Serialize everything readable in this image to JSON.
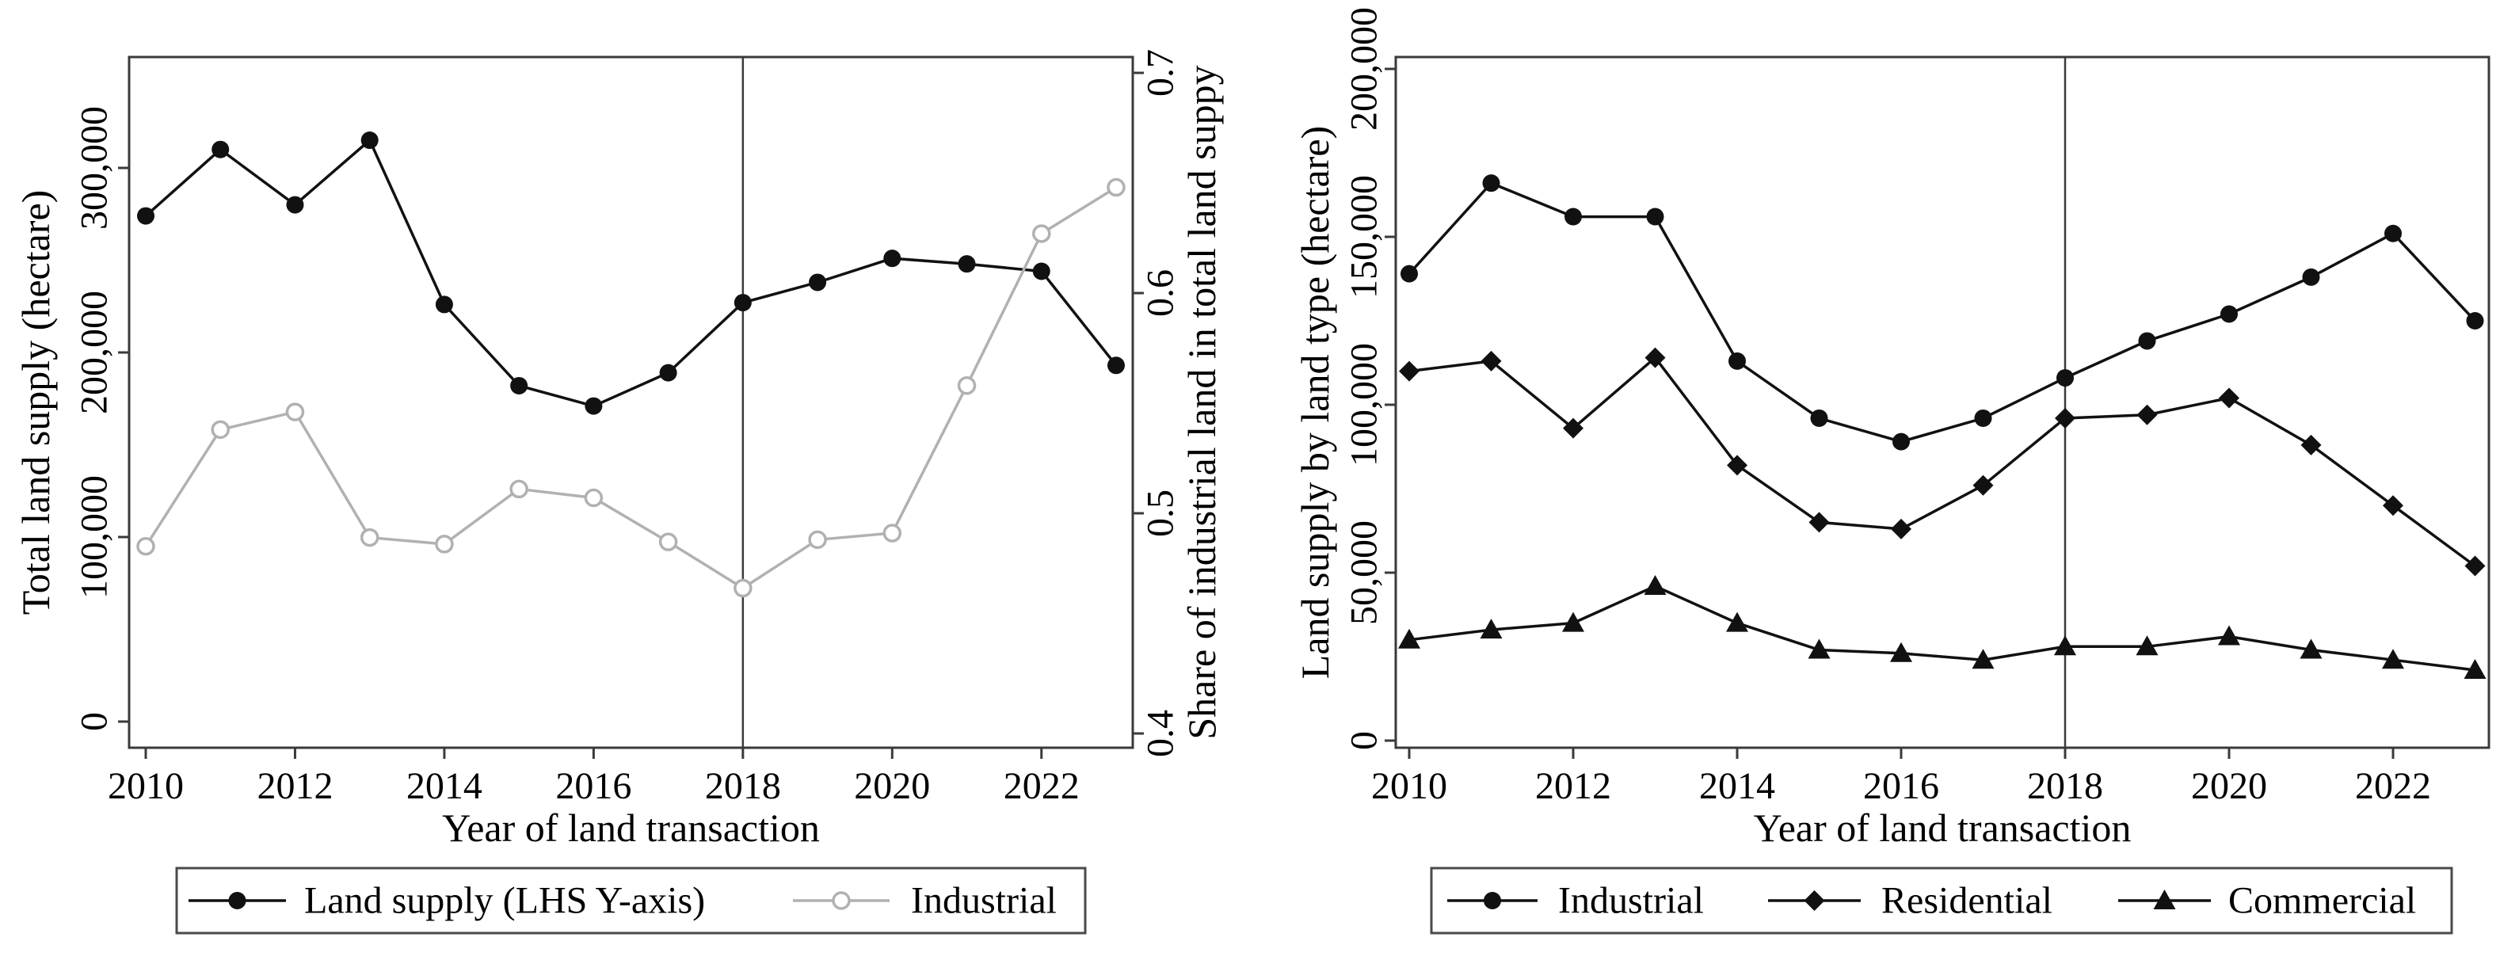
{
  "figure": {
    "background": "#ffffff",
    "frame_color": "#3a3a3a",
    "text_color": "#000000",
    "black_series_color": "#111111",
    "gray_series_color": "#b1b1b1"
  },
  "chart_data": [
    {
      "id": "left-panel",
      "type": "line",
      "xlabel": "Year of land transaction",
      "ylabel_left": "Total land supply (hectare)",
      "ylabel_right": "Share of industrial land in total land suppy",
      "x": [
        2010,
        2011,
        2012,
        2013,
        2014,
        2015,
        2016,
        2017,
        2018,
        2019,
        2020,
        2021,
        2022,
        2023
      ],
      "x_tick_values": [
        2010,
        2012,
        2014,
        2016,
        2018,
        2020,
        2022
      ],
      "x_tick_labels": [
        "2010",
        "2012",
        "2014",
        "2016",
        "2018",
        "2020",
        "2022"
      ],
      "y_left_tick_values": [
        0,
        100000,
        200000,
        300000
      ],
      "y_left_tick_labels": [
        "0",
        "100,000",
        "200,000",
        "300,000"
      ],
      "y_right_tick_values": [
        0.4,
        0.5,
        0.6,
        0.7
      ],
      "y_right_tick_labels": [
        "0.4",
        "0.5",
        "0.6",
        "0.7"
      ],
      "ylim_left": [
        0,
        360000
      ],
      "ylim_right": [
        0.393,
        0.707
      ],
      "grid": false,
      "legend_position": "bottom",
      "reference_line_x": 2018,
      "series": [
        {
          "name": "Land supply (LHS Y-axis)",
          "axis": "left",
          "marker": "circle-filled",
          "color": "#111111",
          "values": [
            274000,
            310000,
            280000,
            315000,
            226000,
            182000,
            171000,
            189000,
            227000,
            238000,
            251000,
            248000,
            244000,
            193000
          ]
        },
        {
          "name": "Industrial",
          "axis": "right",
          "marker": "circle-open",
          "color": "#b1b1b1",
          "values": [
            0.485,
            0.538,
            0.546,
            0.489,
            0.486,
            0.511,
            0.507,
            0.487,
            0.466,
            0.488,
            0.491,
            0.558,
            0.627,
            0.648
          ]
        }
      ]
    },
    {
      "id": "right-panel",
      "type": "line",
      "xlabel": "Year of land transaction",
      "ylabel_left": "Land supply by land type (hectare)",
      "ylabel_right": "",
      "x": [
        2010,
        2011,
        2012,
        2013,
        2014,
        2015,
        2016,
        2017,
        2018,
        2019,
        2020,
        2021,
        2022,
        2023
      ],
      "x_tick_values": [
        2010,
        2012,
        2014,
        2016,
        2018,
        2020,
        2022
      ],
      "x_tick_labels": [
        "2010",
        "2012",
        "2014",
        "2016",
        "2018",
        "2020",
        "2022"
      ],
      "y_left_tick_values": [
        0,
        50000,
        100000,
        150000,
        200000
      ],
      "y_left_tick_labels": [
        "0",
        "50,000",
        "100,000",
        "150,000",
        "200,000"
      ],
      "y_right_tick_values": [],
      "y_right_tick_labels": [],
      "ylim_left": [
        0,
        203500
      ],
      "grid": false,
      "legend_position": "bottom",
      "reference_line_x": 2018,
      "series": [
        {
          "name": "Industrial",
          "axis": "left",
          "marker": "circle-filled",
          "color": "#111111",
          "values": [
            139000,
            166000,
            156000,
            156000,
            113000,
            96000,
            89000,
            96000,
            108000,
            119000,
            127000,
            138000,
            151000,
            125000
          ]
        },
        {
          "name": "Residential",
          "axis": "left",
          "marker": "diamond-filled",
          "color": "#111111",
          "values": [
            110000,
            113000,
            93000,
            114000,
            82000,
            65000,
            63000,
            76000,
            96000,
            97000,
            102000,
            88000,
            70000,
            52000
          ]
        },
        {
          "name": "Commercial",
          "axis": "left",
          "marker": "triangle-filled",
          "color": "#111111",
          "values": [
            30000,
            33000,
            35000,
            46000,
            35000,
            27000,
            26000,
            24000,
            28000,
            28000,
            31000,
            27000,
            24000,
            21000
          ]
        }
      ]
    }
  ]
}
